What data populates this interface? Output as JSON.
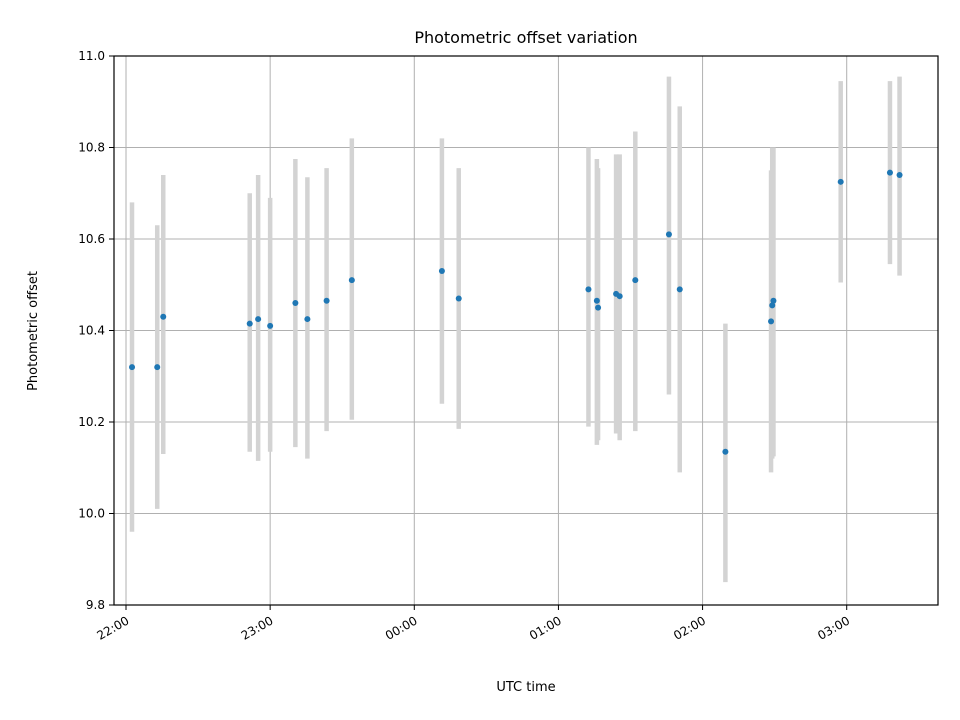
{
  "chart_data": {
    "type": "scatter",
    "title": "Photometric offset variation",
    "xlabel": "UTC time",
    "ylabel": "Photometric offset",
    "xlim": [
      "21:55",
      "03:38"
    ],
    "ylim": [
      9.8,
      11.0
    ],
    "x_ticks": [
      "22:00",
      "23:00",
      "00:00",
      "01:00",
      "02:00",
      "03:00"
    ],
    "y_ticks": [
      "9.8",
      "10.0",
      "10.2",
      "10.4",
      "10.6",
      "10.8",
      "11.0"
    ],
    "grid": true,
    "colors": {
      "points": "#1f77b4",
      "error_bars": "#d3d3d3",
      "grid": "#b0b0b0"
    },
    "points": [
      {
        "t": "22:02:30",
        "y": 10.32,
        "lo": 9.96,
        "hi": 10.68
      },
      {
        "t": "22:13:00",
        "y": 10.32,
        "lo": 10.01,
        "hi": 10.63
      },
      {
        "t": "22:15:30",
        "y": 10.43,
        "lo": 10.13,
        "hi": 10.74
      },
      {
        "t": "22:51:30",
        "y": 10.415,
        "lo": 10.135,
        "hi": 10.7
      },
      {
        "t": "22:55:00",
        "y": 10.425,
        "lo": 10.115,
        "hi": 10.74
      },
      {
        "t": "23:00:00",
        "y": 10.41,
        "lo": 10.135,
        "hi": 10.69
      },
      {
        "t": "23:10:30",
        "y": 10.46,
        "lo": 10.145,
        "hi": 10.775
      },
      {
        "t": "23:15:30",
        "y": 10.425,
        "lo": 10.12,
        "hi": 10.735
      },
      {
        "t": "23:23:30",
        "y": 10.465,
        "lo": 10.18,
        "hi": 10.755
      },
      {
        "t": "23:34:00",
        "y": 10.51,
        "lo": 10.205,
        "hi": 10.82
      },
      {
        "t": "00:11:30",
        "y": 10.53,
        "lo": 10.24,
        "hi": 10.82
      },
      {
        "t": "00:18:30",
        "y": 10.47,
        "lo": 10.185,
        "hi": 10.755
      },
      {
        "t": "01:12:30",
        "y": 10.49,
        "lo": 10.19,
        "hi": 10.8
      },
      {
        "t": "01:16:00",
        "y": 10.465,
        "lo": 10.15,
        "hi": 10.775
      },
      {
        "t": "01:16:30",
        "y": 10.45,
        "lo": 10.16,
        "hi": 10.755
      },
      {
        "t": "01:24:00",
        "y": 10.48,
        "lo": 10.175,
        "hi": 10.785
      },
      {
        "t": "01:25:30",
        "y": 10.475,
        "lo": 10.16,
        "hi": 10.785
      },
      {
        "t": "01:32:00",
        "y": 10.51,
        "lo": 10.18,
        "hi": 10.835
      },
      {
        "t": "01:46:00",
        "y": 10.61,
        "lo": 10.26,
        "hi": 10.955
      },
      {
        "t": "01:50:30",
        "y": 10.49,
        "lo": 10.09,
        "hi": 10.89
      },
      {
        "t": "02:09:30",
        "y": 10.135,
        "lo": 9.85,
        "hi": 10.415
      },
      {
        "t": "02:28:30",
        "y": 10.42,
        "lo": 10.09,
        "hi": 10.75
      },
      {
        "t": "02:29:00",
        "y": 10.455,
        "lo": 10.12,
        "hi": 10.8
      },
      {
        "t": "02:29:30",
        "y": 10.465,
        "lo": 10.125,
        "hi": 10.8
      },
      {
        "t": "02:57:30",
        "y": 10.725,
        "lo": 10.505,
        "hi": 10.945
      },
      {
        "t": "03:18:00",
        "y": 10.745,
        "lo": 10.545,
        "hi": 10.945
      },
      {
        "t": "03:22:00",
        "y": 10.74,
        "lo": 10.52,
        "hi": 10.955
      }
    ]
  }
}
